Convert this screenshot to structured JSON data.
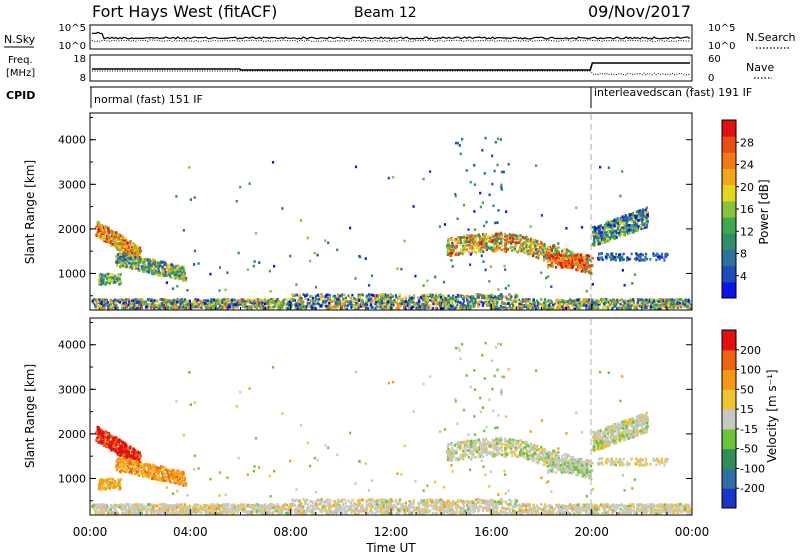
{
  "header": {
    "station": "Fort Hays West (fitACF)",
    "beam": "Beam 12",
    "date": "09/Nov/2017"
  },
  "strips": {
    "nsky_label": "N.Sky",
    "nsky_ticks": [
      "10^5",
      "10^0"
    ],
    "nsearch_label": "N.Search",
    "nsearch_ticks": [
      "10^5",
      "10^0"
    ],
    "freq_label_line1": "Freq.",
    "freq_label_line2": "[MHz]",
    "freq_ticks": [
      "18",
      "8"
    ],
    "nave_label": "Nave",
    "nave_ticks": [
      "60",
      "0"
    ],
    "cpid_label": "CPID",
    "cpid_modes": [
      {
        "label": "normal (fast) 151 IF",
        "start_hour": 0,
        "end_hour": 20
      },
      {
        "label": "interleavedscan (fast) 191 IF",
        "start_hour": 20,
        "end_hour": 24
      }
    ]
  },
  "chart_data": [
    {
      "type": "heatmap",
      "name": "power",
      "ylabel": "Slant Range [km]",
      "xrange_hours": [
        0,
        24
      ],
      "yrange_km": [
        180,
        4600
      ],
      "yticks": [
        "4000",
        "3000",
        "2000",
        "1000"
      ],
      "colorbar": {
        "label": "Power [dB]",
        "ticks": [
          "28",
          "24",
          "20",
          "16",
          "12",
          "8",
          "4"
        ],
        "colors": [
          "#0a14e6",
          "#1f4db8",
          "#2e6f9c",
          "#2f8f6a",
          "#3fa84f",
          "#86c23a",
          "#e5d51f",
          "#f2a71b",
          "#f07a16",
          "#ea4d14",
          "#e01010"
        ]
      }
    },
    {
      "type": "heatmap",
      "name": "velocity",
      "ylabel": "Slant Range [km]",
      "xlabel": "Time UT",
      "xrange_hours": [
        0,
        24
      ],
      "yrange_km": [
        180,
        4600
      ],
      "yticks": [
        "4000",
        "3000",
        "2000",
        "1000"
      ],
      "xticks": [
        "00:00",
        "04:00",
        "08:00",
        "12:00",
        "16:00",
        "20:00",
        "00:00"
      ],
      "colorbar": {
        "label": "Velocity [m s⁻¹]",
        "ticks": [
          "200",
          "100",
          "50",
          "15",
          "-15",
          "-50",
          "-100",
          "-200"
        ],
        "colors": [
          "#1a36c7",
          "#2f6fa6",
          "#2f8f56",
          "#6cc33a",
          "#c8c8c2",
          "#f1c232",
          "#f29a18",
          "#ee6414",
          "#e01010"
        ]
      }
    }
  ]
}
